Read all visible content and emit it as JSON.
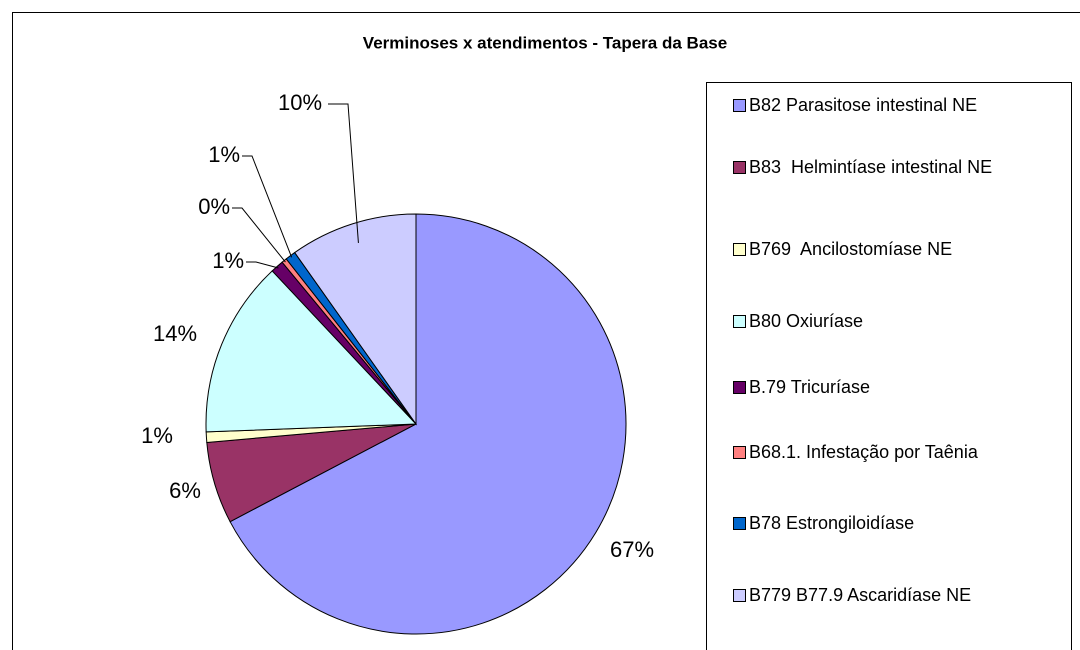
{
  "chart_data": {
    "type": "pie",
    "title": "Verminoses x atendimentos - Tapera da Base",
    "categories": [
      "B82 Parasitose intestinal NE",
      "B83  Helmintíase intestinal NE",
      "B769  Ancilostomíase NE",
      "B80 Oxiuríase",
      "B.79 Tricuríase",
      "B68.1. Infestação por Taênia",
      "B78 Estrongiloidíase",
      "B779 B77.9 Ascaridíase NE"
    ],
    "values": [
      67.3,
      6.3,
      0.8,
      13.6,
      1.0,
      0.4,
      0.8,
      9.8
    ],
    "value_labels": [
      "67%",
      "6%",
      "1%",
      "14%",
      "1%",
      "0%",
      "1%",
      "10%"
    ],
    "colors": [
      "#9999ff",
      "#993366",
      "#ffffcc",
      "#ccffff",
      "#660066",
      "#ff8080",
      "#0066cc",
      "#ccccff"
    ],
    "legend": "right"
  }
}
